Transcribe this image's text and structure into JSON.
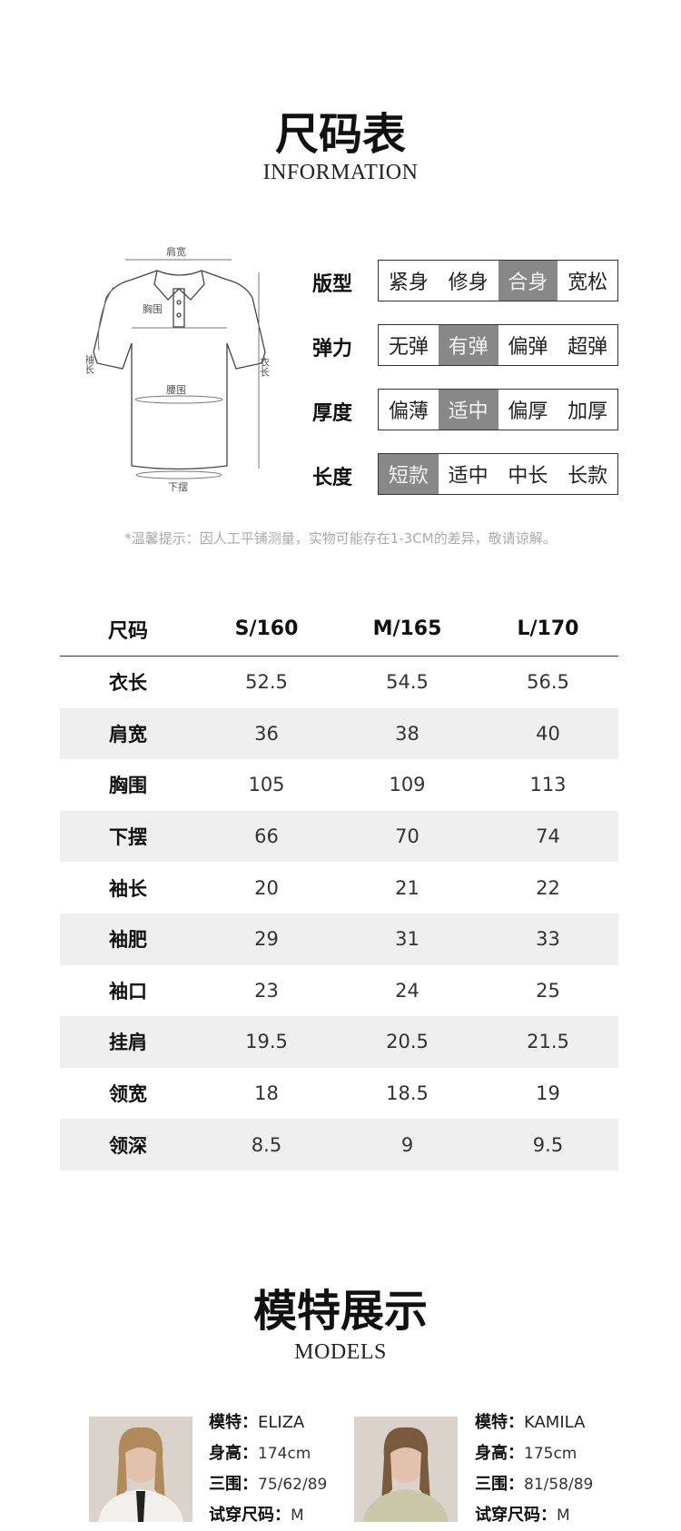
{
  "size_chart": {
    "title": "尺码表",
    "subtitle": "INFORMATION"
  },
  "diagram": {
    "labels": {
      "shoulder": "肩宽",
      "chest": "胸围",
      "sleeve": "袖长",
      "length": "衣长",
      "waist": "腰围",
      "hem": "下摆"
    }
  },
  "attributes": [
    {
      "label": "版型",
      "options": [
        "紧身",
        "修身",
        "合身",
        "宽松"
      ],
      "selected": 2
    },
    {
      "label": "弹力",
      "options": [
        "无弹",
        "有弹",
        "偏弹",
        "超弹"
      ],
      "selected": 1
    },
    {
      "label": "厚度",
      "options": [
        "偏薄",
        "适中",
        "偏厚",
        "加厚"
      ],
      "selected": 1
    },
    {
      "label": "长度",
      "options": [
        "短款",
        "适中",
        "中长",
        "长款"
      ],
      "selected": 0
    }
  ],
  "note": "*温馨提示：因人工平铺测量，实物可能存在1-3CM的差异，敬请谅解。",
  "table": {
    "headers": [
      "尺码",
      "S/160",
      "M/165",
      "L/170"
    ],
    "rows": [
      [
        "衣长",
        "52.5",
        "54.5",
        "56.5"
      ],
      [
        "肩宽",
        "36",
        "38",
        "40"
      ],
      [
        "胸围",
        "105",
        "109",
        "113"
      ],
      [
        "下摆",
        "66",
        "70",
        "74"
      ],
      [
        "袖长",
        "20",
        "21",
        "22"
      ],
      [
        "袖肥",
        "29",
        "31",
        "33"
      ],
      [
        "袖口",
        "23",
        "24",
        "25"
      ],
      [
        "挂肩",
        "19.5",
        "20.5",
        "21.5"
      ],
      [
        "领宽",
        "18",
        "18.5",
        "19"
      ],
      [
        "领深",
        "8.5",
        "9",
        "9.5"
      ]
    ]
  },
  "models_section": {
    "title": "模特展示",
    "subtitle": "MODELS"
  },
  "models": [
    {
      "k_name": "模特：",
      "name": "ELIZA",
      "k_height": "身高：",
      "height": "174cm",
      "k_measure": "三围：",
      "measure": "75/62/89",
      "k_size": "试穿尺码：",
      "size": "M"
    },
    {
      "k_name": "模特：",
      "name": "KAMILA",
      "k_height": "身高：",
      "height": "175cm",
      "k_measure": "三围：",
      "measure": "81/58/89",
      "k_size": "试穿尺码：",
      "size": "M"
    }
  ],
  "colors": {
    "selected": "#888888",
    "alt_row": "#efefef"
  }
}
